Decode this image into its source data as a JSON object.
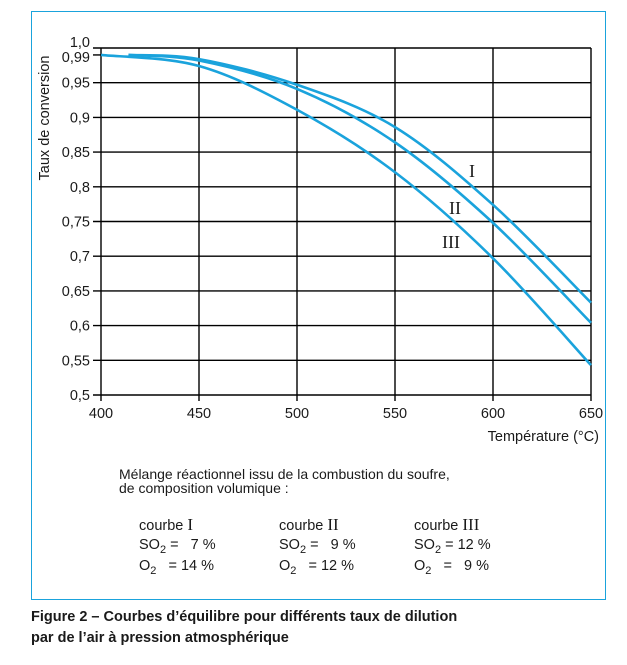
{
  "chart_data": {
    "type": "line",
    "title": "Figure 2 – Courbes d’équilibre pour différents taux de dilution par de l’air à pression atmosphérique",
    "xlabel": "Température (°C)",
    "ylabel": "Taux de conversion",
    "xlim": [
      400,
      650
    ],
    "ylim": [
      0.5,
      1.0
    ],
    "grid": true,
    "x_ticks": [
      "400",
      "450",
      "500",
      "550",
      "600",
      "650"
    ],
    "x_tick_values": [
      400,
      450,
      500,
      550,
      600,
      650
    ],
    "y_ticks": [
      "1,0",
      "0,99",
      "0,95",
      "0,9",
      "0,85",
      "0,8",
      "0,75",
      "0,7",
      "0,65",
      "0,6",
      "0,55",
      "0,5"
    ],
    "y_tick_values": [
      1.0,
      0.99,
      0.95,
      0.9,
      0.85,
      0.8,
      0.75,
      0.7,
      0.65,
      0.6,
      0.55,
      0.5
    ],
    "color": "#1aa3dc",
    "series": [
      {
        "name": "I",
        "x": [
          414,
          450,
          500,
          550,
          600,
          650
        ],
        "y": [
          0.99,
          0.984,
          0.947,
          0.886,
          0.774,
          0.633
        ]
      },
      {
        "name": "II",
        "x": [
          414,
          450,
          500,
          550,
          600,
          650
        ],
        "y": [
          0.99,
          0.982,
          0.941,
          0.864,
          0.748,
          0.604
        ]
      },
      {
        "name": "III",
        "x": [
          400,
          450,
          500,
          550,
          600,
          650
        ],
        "y": [
          0.99,
          0.974,
          0.911,
          0.821,
          0.697,
          0.543
        ]
      }
    ]
  },
  "legend": {
    "intro_line1": "Mélange réactionnel issu de la combustion du soufre,",
    "intro_line2": "de composition volumique :",
    "curves": [
      {
        "label": "courbe",
        "roman": "I",
        "so2_prefix": "SO",
        "so2_sub": "2",
        "so2_value": " =   7 %",
        "o2_prefix": "O",
        "o2_sub": "2",
        "o2_value": "   = 14 %"
      },
      {
        "label": "courbe",
        "roman": "II",
        "so2_prefix": "SO",
        "so2_sub": "2",
        "so2_value": " =   9 %",
        "o2_prefix": "O",
        "o2_sub": "2",
        "o2_value": "   = 12 %"
      },
      {
        "label": "courbe",
        "roman": "III",
        "so2_prefix": "SO",
        "so2_sub": "2",
        "so2_value": " = 12 %",
        "o2_prefix": "O",
        "o2_sub": "2",
        "o2_value": "   =   9 %"
      }
    ]
  },
  "caption": {
    "line1": "Figure 2  –  Courbes d’équilibre pour différents taux de dilution",
    "line2": "par de l’air à pression atmosphérique"
  }
}
